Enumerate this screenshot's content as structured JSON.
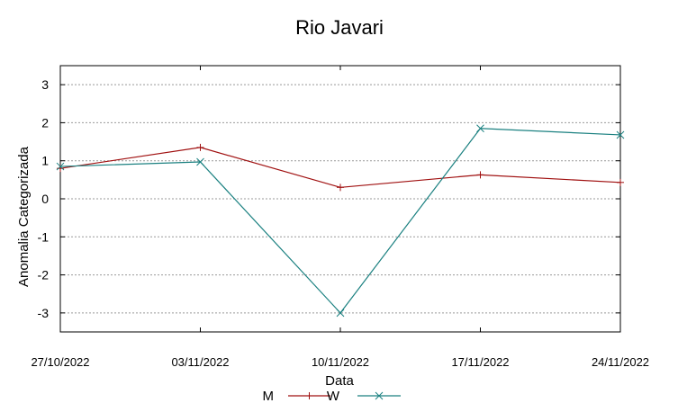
{
  "chart_data": {
    "type": "line",
    "title": "Rio Javari",
    "xlabel": "Data",
    "ylabel": "Anomalia Categorizada",
    "categories": [
      "27/10/2022",
      "03/11/2022",
      "10/11/2022",
      "17/11/2022",
      "24/11/2022"
    ],
    "ylim": [
      -3.5,
      3.5
    ],
    "yticks": [
      "3",
      "2",
      "1",
      "0",
      "-1",
      "-2",
      "-3"
    ],
    "ytick_values": [
      3,
      2,
      1,
      0,
      -1,
      -2,
      -3
    ],
    "grid": true,
    "legend_position": "bottom",
    "series": [
      {
        "name": "M",
        "color": "#a01010",
        "marker": "plus",
        "values": [
          0.8,
          1.35,
          0.3,
          0.63,
          0.43
        ]
      },
      {
        "name": "W",
        "color": "#1a8080",
        "marker": "cross",
        "values": [
          0.85,
          0.97,
          -3.0,
          1.85,
          1.68
        ]
      }
    ]
  }
}
